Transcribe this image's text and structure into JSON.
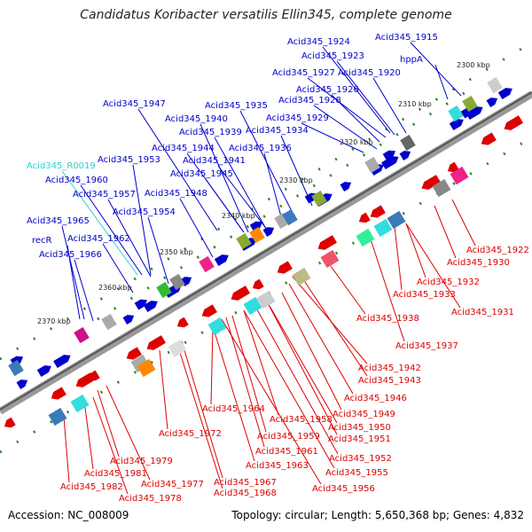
{
  "title": "Candidatus Koribacter versatilis Ellin345, complete genome",
  "accession": "Accession: NC_008009",
  "summary": "Topology: circular; Length: 5,650,368 bp; Genes: 4,832",
  "colors": {
    "forward": "#0000cc",
    "reverse": "#dd0000",
    "rna": "#33cccc",
    "backbone": "#777777",
    "tick": "#228822"
  },
  "kbp_markers": [
    "2300 kbp",
    "2310 kbp",
    "2320 kbp",
    "2330 kbp",
    "2340 kbp",
    "2350 kbp",
    "2360 kbp",
    "2370 kbp"
  ],
  "forward_labels": [
    {
      "text": "Acid345_1924"
    },
    {
      "text": "Acid345_1915"
    },
    {
      "text": "Acid345_1923"
    },
    {
      "text": "hppA"
    },
    {
      "text": "Acid345_1927"
    },
    {
      "text": "Acid345_1920"
    },
    {
      "text": "Acid345_1926"
    },
    {
      "text": "Acid345_1947"
    },
    {
      "text": "Acid345_1935"
    },
    {
      "text": "Acid345_1928"
    },
    {
      "text": "Acid345_1940"
    },
    {
      "text": "Acid345_1929"
    },
    {
      "text": "Acid345_1939"
    },
    {
      "text": "Acid345_1934"
    },
    {
      "text": "Acid345_1944"
    },
    {
      "text": "Acid345_1936"
    },
    {
      "text": "Acid345_1953"
    },
    {
      "text": "Acid345_1941"
    },
    {
      "text": "Acid345_R0019"
    },
    {
      "text": "Acid345_1945"
    },
    {
      "text": "Acid345_1960"
    },
    {
      "text": "Acid345_1957"
    },
    {
      "text": "Acid345_1948"
    },
    {
      "text": "Acid345_1954"
    },
    {
      "text": "Acid345_1965"
    },
    {
      "text": "Acid345_1962"
    },
    {
      "text": "recR"
    },
    {
      "text": "Acid345_1966"
    }
  ],
  "reverse_labels": [
    {
      "text": "Acid345_1922"
    },
    {
      "text": "Acid345_1930"
    },
    {
      "text": "Acid345_1932"
    },
    {
      "text": "Acid345_1933"
    },
    {
      "text": "Acid345_1931"
    },
    {
      "text": "Acid345_1938"
    },
    {
      "text": "Acid345_1937"
    },
    {
      "text": "Acid345_1942"
    },
    {
      "text": "Acid345_1943"
    },
    {
      "text": "Acid345_1946"
    },
    {
      "text": "Acid345_1964"
    },
    {
      "text": "Acid345_1949"
    },
    {
      "text": "Acid345_1958"
    },
    {
      "text": "Acid345_1950"
    },
    {
      "text": "Acid345_1972"
    },
    {
      "text": "Acid345_1959"
    },
    {
      "text": "Acid345_1951"
    },
    {
      "text": "Acid345_1961"
    },
    {
      "text": "Acid345_1952"
    },
    {
      "text": "Acid345_1963"
    },
    {
      "text": "Acid345_1955"
    },
    {
      "text": "Acid345_1979"
    },
    {
      "text": "Acid345_1981"
    },
    {
      "text": "Acid345_1967"
    },
    {
      "text": "Acid345_1977"
    },
    {
      "text": "Acid345_1956"
    },
    {
      "text": "Acid345_1982"
    },
    {
      "text": "Acid345_1968"
    },
    {
      "text": "Acid345_1978"
    }
  ]
}
